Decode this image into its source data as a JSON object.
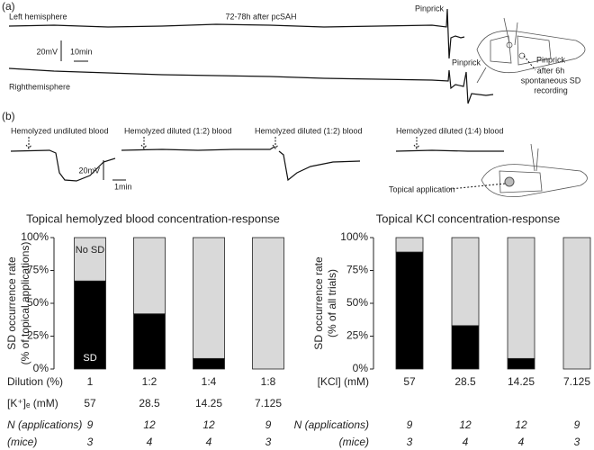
{
  "panel_a": {
    "label": "(a)",
    "left_trace": "Left hemisphere",
    "time": "72-78h after pcSAH",
    "right_trace": "Righthemisphere",
    "pinprick_1": "Pinprick",
    "pinprick_2": "Pinprick",
    "scale_v": "20mV",
    "scale_h": "10min",
    "skull_note": [
      "Pinprick",
      "after 6h",
      "spontaneous SD",
      "recording"
    ]
  },
  "panel_b": {
    "label": "(b)",
    "trace_labels": [
      "Hemolyzed undiluted blood",
      "Hemolyzed diluted (1:2) blood",
      "Hemolyzed diluted (1:2) blood",
      "Hemolyzed diluted (1:4) blood"
    ],
    "scale_v": "20mV",
    "scale_h": "1min",
    "skull_note": "Topical application"
  },
  "chart_data": [
    {
      "type": "bar",
      "stacked": true,
      "title": "Topical hemolyzed blood concentration-response",
      "ylabel": [
        "SD occurrence rate",
        "(% of topical applications)"
      ],
      "category_label": "Dilution (%)",
      "categories": [
        "1",
        "1:2",
        "1:4",
        "1:8"
      ],
      "series": [
        {
          "name": "SD",
          "color": "#000000",
          "values": [
            67,
            42,
            8,
            0
          ]
        },
        {
          "name": "No SD",
          "color": "#d9d9d9",
          "values": [
            33,
            58,
            92,
            100
          ]
        }
      ],
      "ylim": [
        0,
        100
      ],
      "yticks": [
        {
          "value": 0,
          "label": "0%"
        },
        {
          "value": 25,
          "label": "25%"
        },
        {
          "value": 50,
          "label": "50%"
        },
        {
          "value": 75,
          "label": "75%"
        },
        {
          "value": 100,
          "label": "100%"
        }
      ],
      "rows": [
        {
          "label": "[K⁺]ₑ (mM)",
          "values": [
            57,
            28.5,
            14.25,
            7.125
          ]
        },
        {
          "label": "N (applications)",
          "values": [
            9,
            12,
            12,
            9
          ]
        },
        {
          "label": "(mice)",
          "values": [
            3,
            4,
            4,
            3
          ]
        }
      ]
    },
    {
      "type": "bar",
      "stacked": true,
      "title": "Topical KCl concentration-response",
      "ylabel": [
        "SD occurrence rate",
        "(% of all trials)"
      ],
      "category_label": "[KCl] (mM)",
      "categories": [
        "57",
        "28.5",
        "14.25",
        "7.125"
      ],
      "series": [
        {
          "color": "#000000",
          "values": [
            89,
            33,
            8,
            0
          ]
        },
        {
          "color": "#d9d9d9",
          "values": [
            11,
            67,
            92,
            100
          ]
        }
      ],
      "ylim": [
        0,
        100
      ],
      "yticks": [
        {
          "value": 0,
          "label": "0%"
        },
        {
          "value": 25,
          "label": "25%"
        },
        {
          "value": 50,
          "label": "50%"
        },
        {
          "value": 75,
          "label": "75%"
        },
        {
          "value": 100,
          "label": "100%"
        }
      ],
      "rows": [
        {
          "label": "N (applications)",
          "values": [
            9,
            12,
            12,
            9
          ]
        },
        {
          "label": "(mice)",
          "values": [
            3,
            4,
            4,
            3
          ]
        }
      ]
    }
  ]
}
